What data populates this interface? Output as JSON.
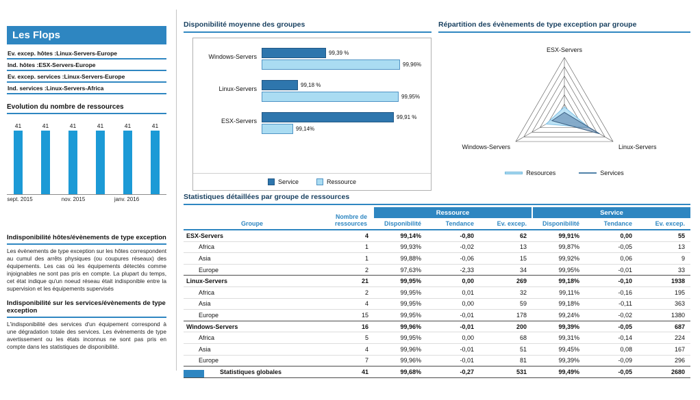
{
  "colors": {
    "accent": "#2e86c1",
    "evolution_bar": "#1c9ad6",
    "service_bar": "#2e76ad",
    "resource_bar": "#aadcf2"
  },
  "sidebar": {
    "title": "Les Flops",
    "flops": [
      {
        "label": "Ev. excep. hôtes :",
        "value": "Linux-Servers-Europe"
      },
      {
        "label": "Ind. hôtes :",
        "value": "ESX-Servers-Europe"
      },
      {
        "label": "Ev. excep. services :",
        "value": "Linux-Servers-Europe"
      },
      {
        "label": "Ind. services :",
        "value": "Linux-Servers-Africa"
      }
    ],
    "sections": [
      {
        "title": "Indisponibilité hôtes/évènements de type exception",
        "body": "Les évènements de type exception sur les hôtes correspondent au cumul des arrêts physiques (ou coupures réseaux) des équipements. Les cas où les équipements détectés comme injoignables ne sont pas pris en compte. La plupart du temps, cet état indique qu'un noeud réseau était indisponible entre la supervision et les équipements supervisés"
      },
      {
        "title": "Indisponibilité sur les services/évènements de type exception",
        "body": "L'indisponibilité des services d'un équipement correspond à une dégradation totale des services. Les évènements de type avertissement ou les états inconnus ne sont pas pris en compte dans les statistiques de disponibilité."
      }
    ]
  },
  "chart_data": [
    {
      "type": "bar",
      "title": "Evolution du nombre de ressources",
      "values": [
        41,
        41,
        41,
        41,
        41,
        41
      ],
      "x_tick_labels": [
        "sept. 2015",
        "nov. 2015",
        "janv. 2016"
      ],
      "bar_color": "#1c9ad6",
      "grid": false
    },
    {
      "type": "bar",
      "orientation": "horizontal",
      "title": "Disponibilité moyenne des groupes",
      "categories": [
        "Windows-Servers",
        "Linux-Servers",
        "ESX-Servers"
      ],
      "series": [
        {
          "name": "Service",
          "values": [
            99.39,
            99.18,
            99.91
          ],
          "labels": [
            "99,39 %",
            "99,18 %",
            "99,91 %"
          ],
          "color": "#2e76ad"
        },
        {
          "name": "Ressource",
          "values": [
            99.96,
            99.95,
            99.14
          ],
          "labels": [
            "99,96%",
            "99,95%",
            "99,14%"
          ],
          "color": "#aadcf2"
        }
      ],
      "xlim": [
        98.9,
        100
      ],
      "legend_position": "bottom"
    },
    {
      "type": "radar",
      "title": "Répartition des évènements de type exception par groupe",
      "axes": [
        "ESX-Servers",
        "Linux-Servers",
        "Windows-Servers"
      ],
      "series": [
        {
          "name": "Resources",
          "values": [
            62,
            269,
            200
          ],
          "fill": "#b9e2f6",
          "stroke": "#7fc0e4"
        },
        {
          "name": "Services",
          "values": [
            55,
            1938,
            687
          ],
          "fill": "#577ea6",
          "stroke": "#3d6285"
        }
      ],
      "rings": 6,
      "legend_position": "bottom"
    },
    {
      "type": "table",
      "title": "Statistiques détaillées par groupe de ressources",
      "header": {
        "groupe": "Groupe",
        "count": [
          "Nombre de",
          "ressources"
        ],
        "bands": [
          "Ressource",
          "Service"
        ],
        "sub": [
          "Disponibilité",
          "Tendance",
          "Ev. excep."
        ]
      },
      "rows": [
        {
          "kind": "group",
          "cells": [
            "ESX-Servers",
            "4",
            "99,14%",
            "-0,80",
            "62",
            "99,91%",
            "0,00",
            "55"
          ]
        },
        {
          "kind": "region",
          "cells": [
            "Africa",
            "1",
            "99,93%",
            "-0,02",
            "13",
            "99,87%",
            "-0,05",
            "13"
          ]
        },
        {
          "kind": "region",
          "cells": [
            "Asia",
            "1",
            "99,88%",
            "-0,06",
            "15",
            "99,92%",
            "0,06",
            "9"
          ]
        },
        {
          "kind": "region",
          "cells": [
            "Europe",
            "2",
            "97,63%",
            "-2,33",
            "34",
            "99,95%",
            "-0,01",
            "33"
          ]
        },
        {
          "kind": "group",
          "cells": [
            "Linux-Servers",
            "21",
            "99,95%",
            "0,00",
            "269",
            "99,18%",
            "-0,10",
            "1938"
          ]
        },
        {
          "kind": "region",
          "cells": [
            "Africa",
            "2",
            "99,95%",
            "0,01",
            "32",
            "99,11%",
            "-0,16",
            "195"
          ]
        },
        {
          "kind": "region",
          "cells": [
            "Asia",
            "4",
            "99,95%",
            "0,00",
            "59",
            "99,18%",
            "-0,11",
            "363"
          ]
        },
        {
          "kind": "region",
          "cells": [
            "Europe",
            "15",
            "99,95%",
            "-0,01",
            "178",
            "99,24%",
            "-0,02",
            "1380"
          ]
        },
        {
          "kind": "group",
          "cells": [
            "Windows-Servers",
            "16",
            "99,96%",
            "-0,01",
            "200",
            "99,39%",
            "-0,05",
            "687"
          ]
        },
        {
          "kind": "region",
          "cells": [
            "Africa",
            "5",
            "99,95%",
            "0,00",
            "68",
            "99,31%",
            "-0,14",
            "224"
          ]
        },
        {
          "kind": "region",
          "cells": [
            "Asia",
            "4",
            "99,96%",
            "-0,01",
            "51",
            "99,45%",
            "0,08",
            "167"
          ]
        },
        {
          "kind": "region",
          "cells": [
            "Europe",
            "7",
            "99,96%",
            "-0,01",
            "81",
            "99,39%",
            "-0,09",
            "296"
          ]
        },
        {
          "kind": "total",
          "cells": [
            "Statistiques globales",
            "41",
            "99,68%",
            "-0,27",
            "531",
            "99,49%",
            "-0,05",
            "2680"
          ]
        }
      ]
    }
  ]
}
